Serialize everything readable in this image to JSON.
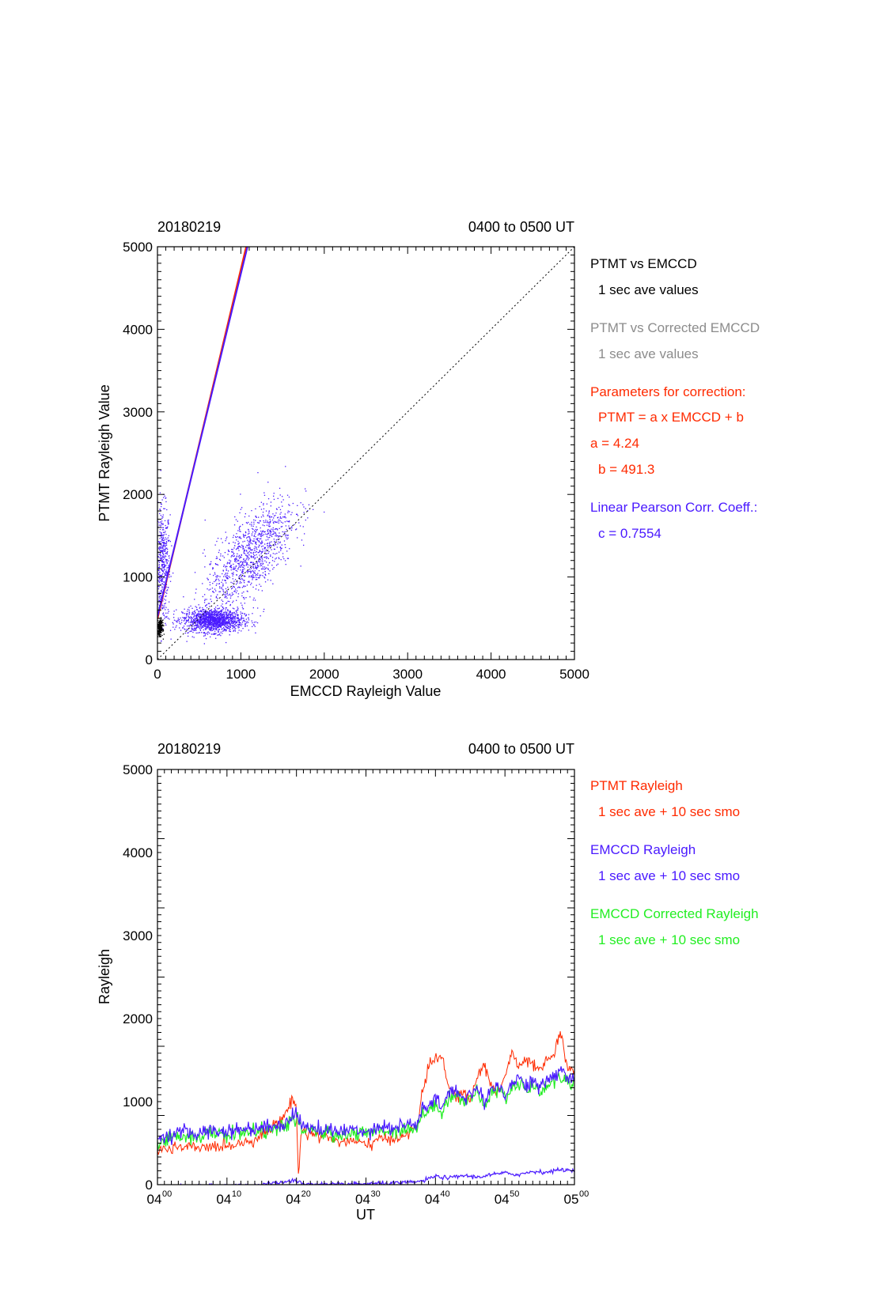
{
  "colors": {
    "black": "#000000",
    "gray": "#8c8c8c",
    "red": "#ff2a00",
    "blue": "#4a1aff",
    "green": "#22ee22"
  },
  "chart_data": [
    {
      "type": "scatter",
      "date_label": "20180219",
      "time_range_label": "0400 to 0500 UT",
      "xlabel": "EMCCD Rayleigh Value",
      "ylabel": "PTMT Rayleigh Value",
      "xlim": [
        0,
        5000
      ],
      "ylim": [
        0,
        5000
      ],
      "x_ticks": [
        "0",
        "1000",
        "2000",
        "3000",
        "4000",
        "5000"
      ],
      "y_ticks": [
        "0",
        "1000",
        "2000",
        "3000",
        "4000",
        "5000"
      ],
      "grid": false,
      "identity_line": true,
      "fit_lines": [
        {
          "color": "red",
          "slope": 4.24,
          "intercept": 491.3
        },
        {
          "color": "blue",
          "slope": 4.15,
          "intercept": 520
        }
      ],
      "clusters": [
        {
          "color": "blue",
          "cx": 55,
          "cy": 1150,
          "sx": 45,
          "sy": 350,
          "n": 500
        },
        {
          "color": "blue",
          "cx": 660,
          "cy": 480,
          "sx": 180,
          "sy": 70,
          "n": 1400
        },
        {
          "color": "blue",
          "cx": 1100,
          "cy": 1250,
          "sx": 270,
          "sy": 260,
          "n": 1100
        },
        {
          "color": "black",
          "cx": 25,
          "cy": 390,
          "sx": 15,
          "sy": 45,
          "n": 250
        }
      ],
      "legend": {
        "lines": [
          {
            "text": "PTMT vs EMCCD",
            "color": "black"
          },
          {
            "text": "1 sec ave values",
            "color": "black"
          },
          {
            "text": "PTMT vs Corrected EMCCD",
            "color": "gray"
          },
          {
            "text": "1 sec ave values",
            "color": "gray"
          },
          {
            "text": "Parameters for correction:",
            "color": "red"
          },
          {
            "text": "PTMT = a x EMCCD + b",
            "color": "red"
          },
          {
            "text": "a = 4.24",
            "color": "red"
          },
          {
            "text": "b =  491.3",
            "color": "red"
          },
          {
            "text": "Linear Pearson Corr. Coeff.:",
            "color": "blue"
          },
          {
            "text": "c = 0.7554",
            "color": "blue"
          }
        ]
      }
    },
    {
      "type": "line",
      "date_label": "20180219",
      "time_range_label": "0400 to 0500 UT",
      "xlabel": "UT",
      "ylabel": "Rayleigh",
      "ylim": [
        0,
        5000
      ],
      "xlim_minutes": [
        0,
        60
      ],
      "x_ticks": [
        {
          "hh": "04",
          "mm": "00"
        },
        {
          "hh": "04",
          "mm": "10"
        },
        {
          "hh": "04",
          "mm": "20"
        },
        {
          "hh": "04",
          "mm": "30"
        },
        {
          "hh": "04",
          "mm": "40"
        },
        {
          "hh": "04",
          "mm": "50"
        },
        {
          "hh": "05",
          "mm": "00"
        }
      ],
      "y_ticks": [
        "0",
        "1000",
        "2000",
        "3000",
        "4000",
        "5000"
      ],
      "series": [
        {
          "key": "ptmt",
          "color": "red",
          "x": [
            0,
            2,
            4,
            6,
            8,
            10,
            12,
            14,
            16,
            18,
            19,
            19.5,
            20,
            20.3,
            20.6,
            21,
            22,
            24,
            26,
            28,
            30,
            32,
            34,
            36,
            37.5,
            38,
            39,
            40,
            41,
            42,
            43,
            44,
            45,
            46,
            47,
            48,
            49,
            50,
            51,
            52,
            53,
            54,
            55,
            56,
            57,
            58,
            59,
            60
          ],
          "y": [
            420,
            430,
            450,
            440,
            460,
            470,
            500,
            550,
            650,
            800,
            950,
            1050,
            900,
            50,
            600,
            650,
            620,
            580,
            520,
            520,
            480,
            540,
            560,
            600,
            720,
            1100,
            1400,
            1560,
            1500,
            1150,
            1050,
            1120,
            1000,
            1300,
            1450,
            1200,
            1100,
            1300,
            1600,
            1400,
            1500,
            1450,
            1350,
            1500,
            1550,
            1850,
            1350,
            1400
          ]
        },
        {
          "key": "emccd_corrected",
          "color": "green",
          "x": [
            0,
            2,
            4,
            6,
            8,
            10,
            12,
            14,
            16,
            18,
            19,
            20,
            21,
            22,
            24,
            26,
            28,
            30,
            32,
            34,
            36,
            37.5,
            38,
            39,
            40,
            41,
            42,
            43,
            44,
            45,
            46,
            47,
            48,
            49,
            50,
            51,
            52,
            53,
            54,
            55,
            56,
            57,
            58,
            59,
            60
          ],
          "y": [
            520,
            560,
            590,
            580,
            620,
            600,
            630,
            640,
            650,
            680,
            760,
            800,
            640,
            650,
            620,
            600,
            620,
            610,
            660,
            650,
            680,
            690,
            850,
            880,
            960,
            900,
            1050,
            1100,
            980,
            1050,
            1100,
            950,
            1100,
            1150,
            1050,
            1150,
            1250,
            1150,
            1200,
            1100,
            1200,
            1250,
            1300,
            1250,
            1200
          ]
        },
        {
          "key": "emccd",
          "color": "blue",
          "x": [
            0,
            2,
            4,
            6,
            8,
            10,
            12,
            14,
            16,
            18,
            19,
            20,
            21,
            22,
            24,
            26,
            28,
            30,
            32,
            34,
            36,
            37.5,
            38,
            39,
            40,
            41,
            42,
            43,
            44,
            45,
            46,
            47,
            48,
            49,
            50,
            51,
            52,
            53,
            54,
            55,
            56,
            57,
            58,
            59,
            60
          ],
          "y": [
            560,
            600,
            630,
            620,
            660,
            640,
            670,
            680,
            700,
            720,
            800,
            860,
            680,
            700,
            660,
            640,
            660,
            650,
            700,
            690,
            720,
            740,
            900,
            930,
            1020,
            950,
            1100,
            1150,
            1040,
            1100,
            1150,
            1000,
            1150,
            1200,
            1100,
            1200,
            1300,
            1200,
            1250,
            1150,
            1250,
            1300,
            1400,
            1300,
            1250
          ]
        },
        {
          "key": "emccd_raw",
          "color": "blue",
          "x": [
            0,
            5,
            10,
            15,
            19,
            20,
            21,
            25,
            30,
            35,
            38,
            40,
            42,
            44,
            46,
            48,
            50,
            52,
            54,
            56,
            58,
            60
          ],
          "y": [
            -30,
            -20,
            -10,
            0,
            40,
            50,
            10,
            0,
            10,
            20,
            40,
            100,
            80,
            110,
            90,
            120,
            140,
            120,
            160,
            150,
            180,
            170
          ]
        }
      ],
      "legend": {
        "lines": [
          {
            "text": "PTMT Rayleigh",
            "color": "red"
          },
          {
            "text": "1 sec ave + 10 sec smo",
            "color": "red"
          },
          {
            "text": "EMCCD Rayleigh",
            "color": "blue"
          },
          {
            "text": "1 sec ave + 10 sec smo",
            "color": "blue"
          },
          {
            "text": "EMCCD Corrected Rayleigh",
            "color": "green"
          },
          {
            "text": "1 sec ave + 10 sec smo",
            "color": "green"
          }
        ]
      }
    }
  ]
}
